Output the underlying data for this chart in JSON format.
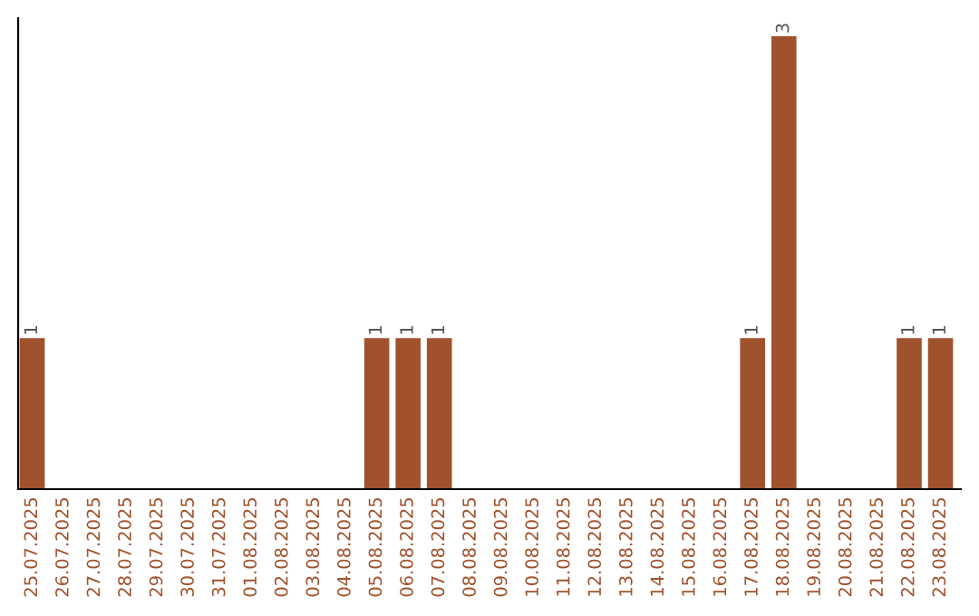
{
  "chart_data": {
    "type": "bar",
    "categories": [
      "25.07.2025",
      "26.07.2025",
      "27.07.2025",
      "28.07.2025",
      "29.07.2025",
      "30.07.2025",
      "31.07.2025",
      "01.08.2025",
      "02.08.2025",
      "03.08.2025",
      "04.08.2025",
      "05.08.2025",
      "06.08.2025",
      "07.08.2025",
      "08.08.2025",
      "09.08.2025",
      "10.08.2025",
      "11.08.2025",
      "12.08.2025",
      "13.08.2025",
      "14.08.2025",
      "15.08.2025",
      "16.08.2025",
      "17.08.2025",
      "18.08.2025",
      "19.08.2025",
      "20.08.2025",
      "21.08.2025",
      "22.08.2025",
      "23.08.2025"
    ],
    "values": [
      1,
      0,
      0,
      0,
      0,
      0,
      0,
      0,
      0,
      0,
      0,
      1,
      1,
      1,
      0,
      0,
      0,
      0,
      0,
      0,
      0,
      0,
      0,
      1,
      3,
      0,
      0,
      0,
      1,
      1
    ],
    "value_labels": [
      "1",
      null,
      null,
      null,
      null,
      null,
      null,
      null,
      null,
      null,
      null,
      "1",
      "1",
      "1",
      null,
      null,
      null,
      null,
      null,
      null,
      null,
      null,
      null,
      "1",
      "3",
      null,
      null,
      null,
      "1",
      "1"
    ],
    "color": "#a0522d",
    "ylim": [
      0,
      3.12
    ],
    "tick_labels": "x",
    "grid": false
  }
}
